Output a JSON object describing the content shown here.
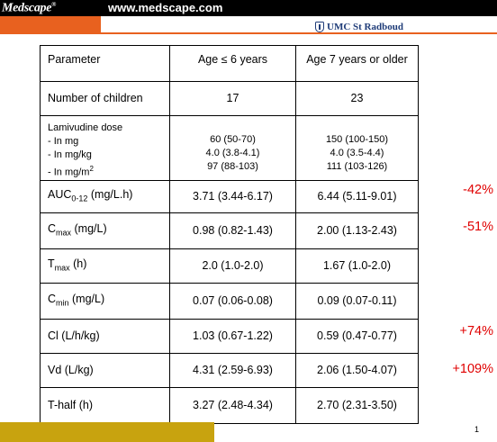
{
  "header": {
    "brand": "Medscape",
    "brand_mark": "®",
    "url": "www.medscape.com",
    "logo_text": "UMC St Radboud"
  },
  "table": {
    "header": {
      "param": "Parameter",
      "young": "Age ≤ 6 years",
      "old": "Age 7 years or older"
    },
    "rows": [
      {
        "param": "Number of children",
        "young": "17",
        "old": "23"
      },
      {
        "dose_title": "Lamivudine dose",
        "lines": [
          {
            "label": "- In mg",
            "young": "60 (50-70)",
            "old": "150 (100-150)"
          },
          {
            "label": "- In mg/kg",
            "young": "4.0 (3.8-4.1)",
            "old": "4.0 (3.5-4.4)"
          },
          {
            "label_main": "- In mg/m",
            "label_sup": "2",
            "young": "97 (88-103)",
            "old": "111 (103-126)"
          }
        ]
      },
      {
        "param_main": "AUC",
        "param_sub": "0-12",
        "param_unit": " (mg/L.h)",
        "young": "3.71 (3.44-6.17)",
        "old": "6.44 (5.11-9.01)"
      },
      {
        "param_main": "C",
        "param_sub": "max",
        "param_unit": " (mg/L)",
        "young": "0.98 (0.82-1.43)",
        "old": "2.00 (1.13-2.43)"
      },
      {
        "param_main": "T",
        "param_sub": "max",
        "param_unit": " (h)",
        "young": "2.0 (1.0-2.0)",
        "old": "1.67 (1.0-2.0)"
      },
      {
        "param_main": "C",
        "param_sub": "min",
        "param_unit": " (mg/L)",
        "young": "0.07 (0.06-0.08)",
        "old": "0.09 (0.07-0.11)"
      },
      {
        "param": "Cl (L/h/kg)",
        "young": "1.03 (0.67-1.22)",
        "old": "0.59 (0.47-0.77)"
      },
      {
        "param": "Vd (L/kg)",
        "young": "4.31 (2.59-6.93)",
        "old": "2.06 (1.50-4.07)"
      },
      {
        "param": "T-half (h)",
        "young": "3.27 (2.48-4.34)",
        "old": "2.70 (2.31-3.50)"
      }
    ]
  },
  "changes": {
    "auc": "-42%",
    "cmax": "-51%",
    "cl": "+74%",
    "vd": "+109%"
  },
  "footer": {
    "slide_number": "1"
  },
  "colors": {
    "header_bar": "#000000",
    "accent": "#e8611f",
    "footer_bar": "#c8a30f",
    "change_text": "#e00000",
    "logo": "#1f3c78"
  }
}
